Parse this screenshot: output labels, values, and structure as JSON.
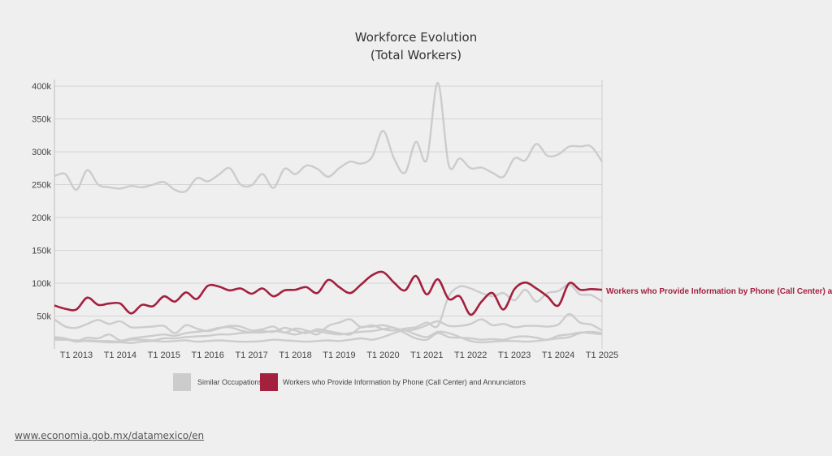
{
  "chart_data": {
    "type": "line",
    "title": "Workforce Evolution",
    "subtitle": "(Total Workers)",
    "x": [
      "2012-Q3",
      "2012-Q4",
      "2013-Q1",
      "2013-Q2",
      "2013-Q3",
      "2013-Q4",
      "2014-Q1",
      "2014-Q2",
      "2014-Q3",
      "2014-Q4",
      "2015-Q1",
      "2015-Q2",
      "2015-Q3",
      "2015-Q4",
      "2016-Q1",
      "2016-Q2",
      "2016-Q3",
      "2016-Q4",
      "2017-Q1",
      "2017-Q2",
      "2017-Q3",
      "2017-Q4",
      "2018-Q1",
      "2018-Q2",
      "2018-Q3",
      "2018-Q4",
      "2019-Q1",
      "2019-Q2",
      "2019-Q3",
      "2019-Q4",
      "2020-Q1",
      "2020-Q2",
      "2020-Q3",
      "2020-Q4",
      "2021-Q1",
      "2021-Q2",
      "2021-Q3",
      "2021-Q4",
      "2022-Q1",
      "2022-Q2",
      "2022-Q3",
      "2022-Q4",
      "2023-Q1",
      "2023-Q2",
      "2023-Q3",
      "2023-Q4",
      "2024-Q1",
      "2024-Q2",
      "2024-Q3",
      "2024-Q4",
      "2025-Q1"
    ],
    "xticks": [
      "T1 2013",
      "T1 2014",
      "T1 2015",
      "T1 2016",
      "T1 2017",
      "T1 2018",
      "T1 2019",
      "T1 2020",
      "T1 2021",
      "T1 2022",
      "T1 2023",
      "T1 2024",
      "T1 2025"
    ],
    "yticks": [
      "50k",
      "100k",
      "150k",
      "200k",
      "250k",
      "300k",
      "350k",
      "400k"
    ],
    "ylim": [
      0,
      410000
    ],
    "grid": true,
    "legend_placement": "bottom",
    "highlight_label": "Workers who Provide Information by Phone (Call Center) a",
    "legend": [
      {
        "label": "Similar Occupations",
        "color": "#cccccc"
      },
      {
        "label": "Workers who Provide Information by Phone (Call Center) and Annunciators",
        "color": "#a3203f"
      }
    ],
    "series": [
      {
        "group": "Similar Occupations",
        "color": "#cccccc",
        "values": [
          263000,
          266000,
          242000,
          272000,
          250000,
          246000,
          244000,
          248000,
          246000,
          250000,
          254000,
          242000,
          240000,
          260000,
          255000,
          265000,
          275000,
          250000,
          249000,
          266000,
          245000,
          274000,
          266000,
          279000,
          274000,
          262000,
          275000,
          285000,
          282000,
          292000,
          332000,
          290000,
          268000,
          315000,
          288000,
          405000,
          280000,
          290000,
          275000,
          276000,
          268000,
          262000,
          290000,
          287000,
          312000,
          294000,
          296000,
          308000,
          308000,
          308000,
          285000
        ]
      },
      {
        "group": "Similar Occupations",
        "color": "#cccccc",
        "values": [
          45000,
          34000,
          32000,
          38000,
          44000,
          38000,
          42000,
          33000,
          33000,
          34000,
          35000,
          24000,
          36000,
          31000,
          27000,
          31000,
          35000,
          34000,
          28000,
          30000,
          34000,
          25000,
          31000,
          28000,
          22000,
          35000,
          40000,
          45000,
          33000,
          36000,
          30000,
          28000,
          31000,
          33000,
          40000,
          35000,
          80000,
          95000,
          92000,
          85000,
          80000,
          85000,
          74000,
          90000,
          72000,
          85000,
          88000,
          98000,
          83000,
          82000,
          72000
        ]
      },
      {
        "group": "Similar Occupations",
        "color": "#cccccc",
        "values": [
          18000,
          16000,
          12000,
          17000,
          16000,
          22000,
          13000,
          16000,
          18000,
          20000,
          22000,
          20000,
          24000,
          26000,
          28000,
          32000,
          33000,
          28000,
          25000,
          27000,
          26000,
          32000,
          28000,
          24000,
          30000,
          27000,
          24000,
          22000,
          33000,
          34000,
          36000,
          32000,
          28000,
          30000,
          36000,
          42000,
          35000,
          35000,
          38000,
          45000,
          36000,
          38000,
          33000,
          35000,
          35000,
          34000,
          37000,
          53000,
          40000,
          37000,
          28000
        ]
      },
      {
        "group": "Similar Occupations",
        "color": "#cccccc",
        "values": [
          16000,
          15000,
          11000,
          13000,
          12000,
          12000,
          11000,
          14000,
          14000,
          13000,
          16000,
          16000,
          18000,
          19000,
          20000,
          22000,
          22000,
          24000,
          25000,
          25000,
          27000,
          25000,
          22000,
          26000,
          27000,
          24000,
          22000,
          24000,
          26000,
          27000,
          30000,
          32000,
          24000,
          16000,
          14000,
          24000,
          18000,
          17000,
          16000,
          14000,
          15000,
          14000,
          18000,
          19000,
          17000,
          14000,
          20000,
          22000,
          25000,
          24000,
          22000
        ]
      },
      {
        "group": "Similar Occupations",
        "color": "#cccccc",
        "values": [
          14000,
          14000,
          13000,
          12000,
          11000,
          10000,
          10000,
          9000,
          11000,
          12000,
          11000,
          12000,
          13000,
          11000,
          12000,
          13000,
          12000,
          11000,
          11000,
          12000,
          14000,
          13000,
          12000,
          11000,
          12000,
          13000,
          12000,
          14000,
          16000,
          14000,
          18000,
          24000,
          28000,
          22000,
          18000,
          26000,
          24000,
          18000,
          12000,
          10000,
          11000,
          12000,
          12000,
          11000,
          12000,
          14000,
          16000,
          18000,
          24000,
          26000,
          24000
        ]
      },
      {
        "group": "Workers who Provide Information by Phone (Call Center) and Annunciators",
        "color": "#a3203f",
        "values": [
          66000,
          61000,
          60000,
          78000,
          67000,
          69000,
          69000,
          54000,
          67000,
          65000,
          80000,
          72000,
          86000,
          76000,
          96000,
          95000,
          89000,
          92000,
          84000,
          92000,
          80000,
          89000,
          90000,
          94000,
          85000,
          105000,
          94000,
          85000,
          98000,
          112000,
          117000,
          101000,
          89000,
          111000,
          83000,
          106000,
          76000,
          80000,
          52000,
          72000,
          85000,
          60000,
          91000,
          101000,
          92000,
          80000,
          66000,
          100000,
          90000,
          91000,
          90000
        ]
      }
    ]
  },
  "footer": {
    "link": "www.economia.gob.mx/datamexico/en"
  }
}
